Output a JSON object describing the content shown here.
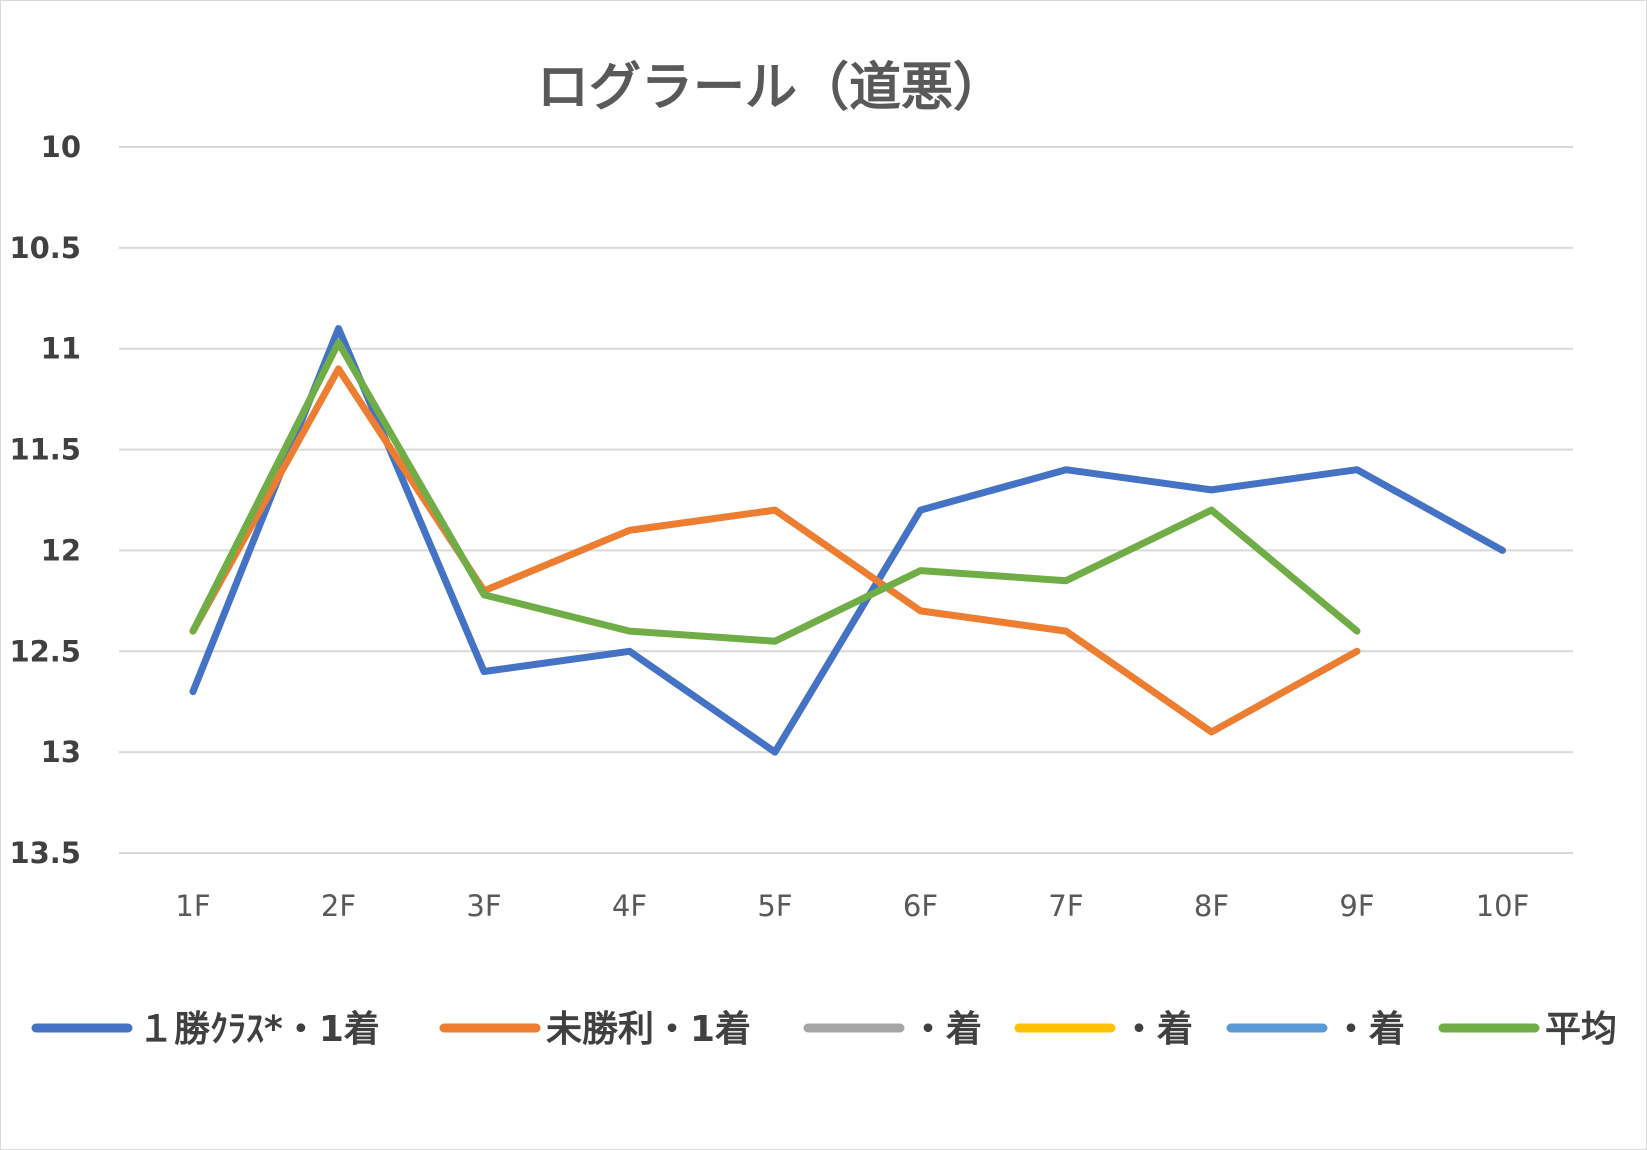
{
  "chart_data": {
    "type": "line",
    "title": "ログラール（道悪）",
    "xlabel": "",
    "ylabel": "",
    "categories": [
      "1F",
      "2F",
      "3F",
      "4F",
      "5F",
      "6F",
      "7F",
      "8F",
      "9F",
      "10F"
    ],
    "yticks": [
      "10",
      "10.5",
      "11",
      "11.5",
      "12",
      "12.5",
      "13",
      "13.5"
    ],
    "ylim": [
      10,
      13.5
    ],
    "y_inverted": true,
    "grid": true,
    "legend": "bottom",
    "series": [
      {
        "name": "１勝ｸﾗｽ*・1着",
        "color": "#4472C4",
        "values": [
          12.7,
          10.9,
          12.6,
          12.5,
          13.0,
          11.8,
          11.6,
          11.7,
          11.6,
          12.0
        ]
      },
      {
        "name": "未勝利・1着",
        "color": "#ED7D31",
        "values": [
          12.4,
          11.1,
          12.2,
          11.9,
          11.8,
          12.3,
          12.4,
          12.9,
          12.5,
          null
        ]
      },
      {
        "name": "・着",
        "color": "#A5A5A5",
        "values": [
          null,
          null,
          null,
          null,
          null,
          null,
          null,
          null,
          null,
          null
        ]
      },
      {
        "name": "・着",
        "color": "#FFC000",
        "values": [
          null,
          null,
          null,
          null,
          null,
          null,
          null,
          null,
          null,
          null
        ]
      },
      {
        "name": "・着",
        "color": "#5B9BD5",
        "values": [
          null,
          null,
          null,
          null,
          null,
          null,
          null,
          null,
          null,
          null
        ]
      },
      {
        "name": "平均",
        "color": "#70AD47",
        "values": [
          12.4,
          10.97,
          12.22,
          12.4,
          12.45,
          12.1,
          12.15,
          11.8,
          12.4,
          null
        ]
      }
    ]
  }
}
